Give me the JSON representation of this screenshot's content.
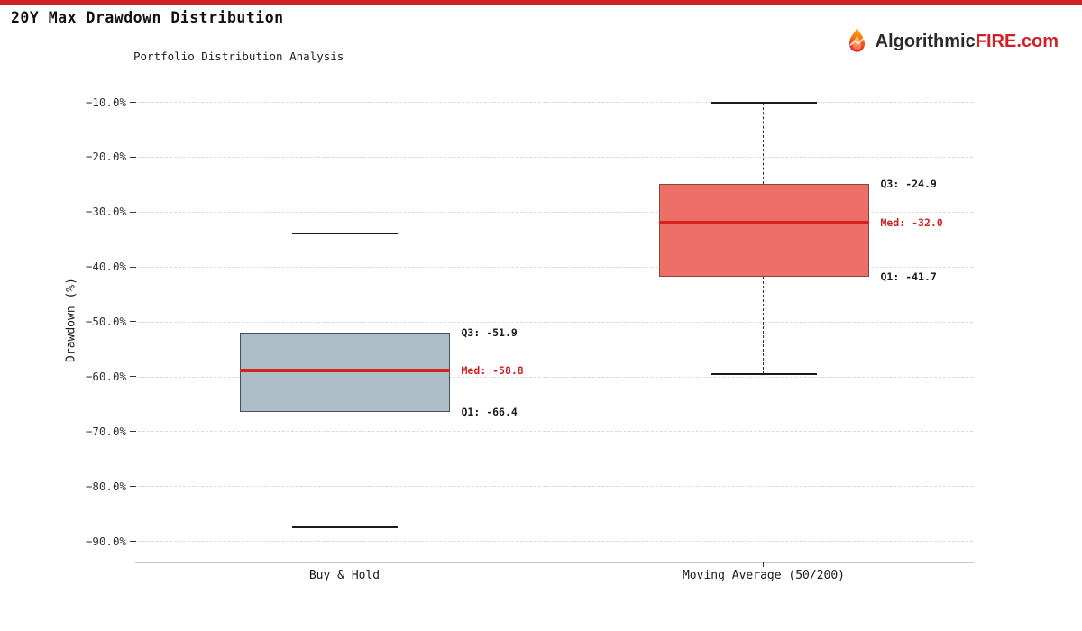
{
  "page": {
    "accent_bar_color": "#cc2222"
  },
  "header": {
    "title": "20Y Max Drawdown Distribution",
    "brand_prefix": "Algorithmic",
    "brand_accent": "FIRE",
    "brand_suffix": ".com"
  },
  "chart_data": {
    "type": "boxplot",
    "title": "Portfolio Distribution Analysis",
    "ylabel": "Drawdown (%)",
    "ylim": [
      -93.7,
      -5.3
    ],
    "grid": true,
    "legend": false,
    "yticks": [
      -10,
      -20,
      -30,
      -40,
      -50,
      -60,
      -70,
      -80,
      -90
    ],
    "ytick_labels": [
      "−10.0%",
      "−20.0%",
      "−30.0%",
      "−40.0%",
      "−50.0%",
      "−60.0%",
      "−70.0%",
      "−80.0%",
      "−90.0%"
    ],
    "categories": [
      "Buy & Hold",
      "Moving Average (50/200)"
    ],
    "median_color": "#d42420",
    "median_label_color": "#d32021",
    "annotation_color": "#1a1a1a",
    "series": [
      {
        "name": "Buy & Hold",
        "whisker_low": -87.4,
        "q1": -66.4,
        "median": -58.8,
        "q3": -51.9,
        "whisker_high": -33.9,
        "box_fill": "#adbdc6",
        "box_border": "#44505a",
        "annotations": {
          "q3": "Q3: -51.9",
          "med": "Med: -58.8",
          "q1": "Q1: -66.4"
        }
      },
      {
        "name": "Moving Average (50/200)",
        "whisker_low": -59.5,
        "q1": -41.7,
        "median": -32.0,
        "q3": -24.9,
        "whisker_high": -10.0,
        "box_fill": "#ee6f67",
        "box_border": "#8a4540",
        "annotations": {
          "q3": "Q3: -24.9",
          "med": "Med: -32.0",
          "q1": "Q1: -41.7"
        }
      }
    ]
  }
}
